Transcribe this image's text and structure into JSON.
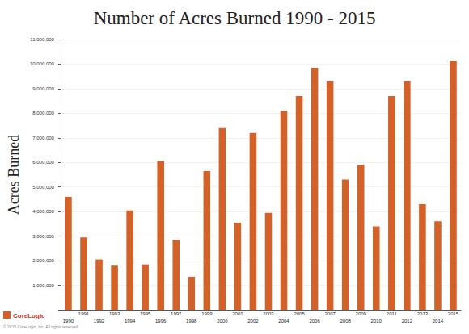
{
  "chart_data": {
    "type": "bar",
    "title": "Number of Acres Burned 1990 - 2015",
    "y_label": "Acres Burned",
    "categories": [
      "1990",
      "1991",
      "1992",
      "1993",
      "1994",
      "1995",
      "1996",
      "1997",
      "1998",
      "1999",
      "2000",
      "2001",
      "2002",
      "2003",
      "2004",
      "2005",
      "2006",
      "2007",
      "2008",
      "2009",
      "2010",
      "2011",
      "2012",
      "2013",
      "2014",
      "2015"
    ],
    "values": [
      4600000,
      2950000,
      2050000,
      1800000,
      4050000,
      1850000,
      6050000,
      2850000,
      1350000,
      5650000,
      7400000,
      3550000,
      7200000,
      3950000,
      8100000,
      8700000,
      9850000,
      9300000,
      5300000,
      5900000,
      3400000,
      8700000,
      9300000,
      4300000,
      3600000,
      10150000
    ],
    "color": "#d2622a",
    "ylim": [
      0,
      11000000
    ],
    "yticks": [
      {
        "value": 1000000,
        "label": "1,000,000"
      },
      {
        "value": 2000000,
        "label": "2,000,000"
      },
      {
        "value": 3000000,
        "label": "3,000,000"
      },
      {
        "value": 4000000,
        "label": "4,000,000"
      },
      {
        "value": 5000000,
        "label": "5,000,000"
      },
      {
        "value": 6000000,
        "label": "6,000,000"
      },
      {
        "value": 7000000,
        "label": "7,000,000"
      },
      {
        "value": 8000000,
        "label": "8,000,000"
      },
      {
        "value": 9000000,
        "label": "9,000,000"
      },
      {
        "value": 10000000,
        "label": "10,000,000"
      },
      {
        "value": 11000000,
        "label": "11,000,000"
      }
    ],
    "grid": true,
    "annotations": [
      "CoreLogic",
      "© 2015 CoreLogic, Inc. All rights reserved."
    ]
  }
}
